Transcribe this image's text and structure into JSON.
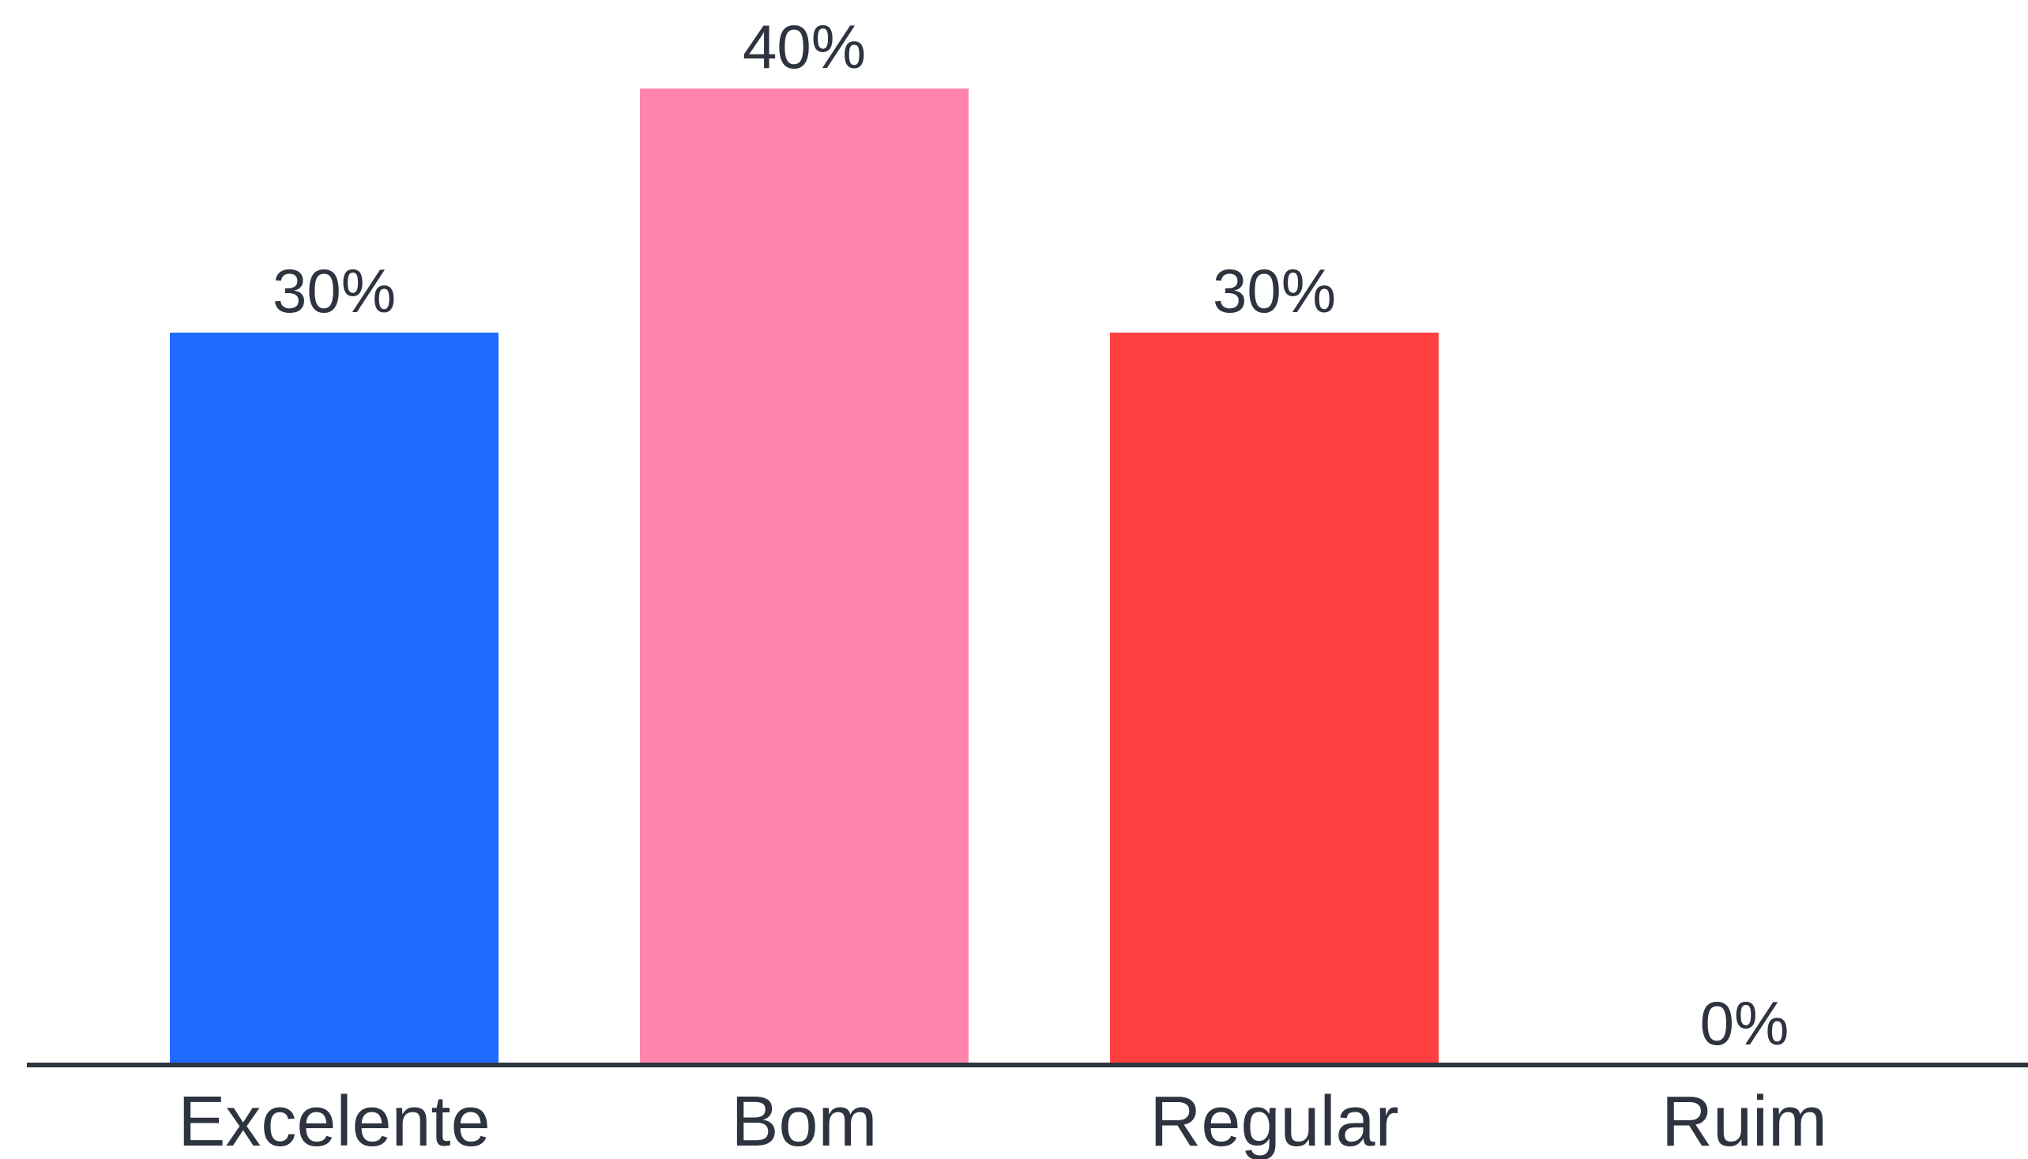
{
  "chart_data": {
    "type": "bar",
    "categories": [
      "Excelente",
      "Bom",
      "Regular",
      "Ruim"
    ],
    "values": [
      30,
      40,
      30,
      0
    ],
    "value_labels": [
      "30%",
      "40%",
      "30%",
      "0%"
    ],
    "colors": [
      "#1f6bff",
      "#ff85ac",
      "#ff4040",
      "#ffffff"
    ],
    "axis_color": "#2e3340",
    "text_color": "#2e3340",
    "ylim": [
      0,
      40
    ],
    "grid": false,
    "legend": "none"
  }
}
